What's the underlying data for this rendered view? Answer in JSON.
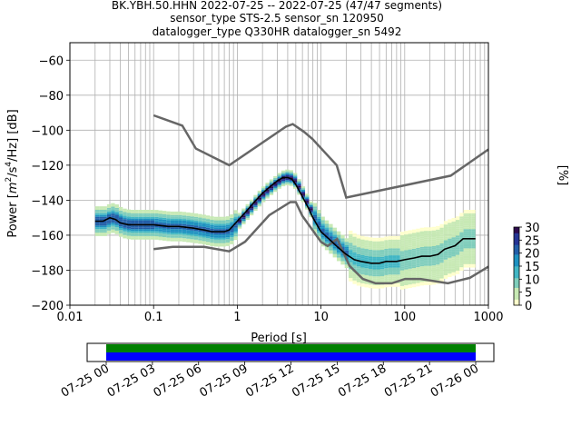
{
  "title_lines": [
    "BK.YBH.50.HHN   2022-07-25 -- 2022-07-25  (47/47 segments)",
    "sensor_type STS-2.5 sensor_sn 120950",
    "datalogger_type Q330HR datalogger_sn 5492"
  ],
  "chart_data": [
    {
      "type": "heatmap",
      "title": "BK.YBH.50.HHN   2022-07-25 -- 2022-07-25  (47/47 segments)",
      "xlabel": "Period [s]",
      "ylabel": "Power [m²/s⁴/Hz] [dB]",
      "ylabel_parts": {
        "prefix": "Power [",
        "m": "m",
        "exp1": "2",
        "mid": "/s",
        "exp2": "4",
        "suffix": "/Hz] [dB]"
      },
      "x_scale": "log",
      "xlim": [
        0.01,
        1000
      ],
      "ylim": [
        -200,
        -50
      ],
      "x_ticks": [
        0.01,
        0.1,
        1,
        10,
        100,
        1000
      ],
      "x_tick_labels": [
        "0.01",
        "0.1",
        "1",
        "10",
        "100",
        "1000"
      ],
      "y_ticks": [
        -200,
        -180,
        -160,
        -140,
        -120,
        -100,
        -80,
        -60
      ],
      "y_tick_labels": [
        "−200",
        "−180",
        "−160",
        "−140",
        "−120",
        "−100",
        "−80",
        "−60"
      ],
      "grid": true,
      "mode_curve": {
        "period": [
          0.02,
          0.025,
          0.03,
          0.035,
          0.04,
          0.05,
          0.07,
          0.1,
          0.15,
          0.2,
          0.3,
          0.4,
          0.5,
          0.6,
          0.7,
          0.8,
          1.0,
          1.3,
          1.6,
          2.0,
          2.5,
          3.0,
          3.5,
          4.0,
          4.5,
          5.0,
          6.0,
          7.0,
          8.0,
          10,
          13,
          16,
          20,
          25,
          30,
          40,
          50,
          60,
          80,
          100,
          130,
          160,
          200,
          250,
          300,
          400,
          500,
          600,
          700
        ],
        "power": [
          -152,
          -152,
          -150,
          -151,
          -153,
          -154,
          -154,
          -154,
          -155,
          -155,
          -156,
          -157,
          -158,
          -158,
          -158,
          -157,
          -152,
          -146,
          -141,
          -136,
          -132,
          -129,
          -127,
          -127,
          -128,
          -131,
          -138,
          -144,
          -150,
          -158,
          -163,
          -167,
          -171,
          -174,
          -175,
          -176,
          -176,
          -175,
          -175,
          -174,
          -173,
          -172,
          -172,
          -171,
          -168,
          -166,
          -162,
          -162,
          -162
        ]
      },
      "density_color_range": [
        0,
        30
      ],
      "density_example_points": [
        {
          "period": 0.05,
          "power": -153,
          "percent": 25
        },
        {
          "period": 0.2,
          "power": -156,
          "percent": 18
        },
        {
          "period": 1.5,
          "power": -143,
          "percent": 28
        },
        {
          "period": 4.0,
          "power": -127,
          "percent": 30
        },
        {
          "period": 15,
          "power": -163,
          "percent": 22
        },
        {
          "period": 40,
          "power": -176,
          "percent": 12
        },
        {
          "period": 200,
          "power": -172,
          "percent": 8
        },
        {
          "period": 500,
          "power": -162,
          "percent": 6
        }
      ],
      "nhnm": {
        "period": [
          0.1,
          0.22,
          0.32,
          0.8,
          3.8,
          4.6,
          6.3,
          7.9,
          15.4,
          20,
          354.8,
          1000
        ],
        "power": [
          -91.5,
          -97.4,
          -110.5,
          -120,
          -98,
          -96.5,
          -101,
          -105,
          -120,
          -138.5,
          -126,
          -111
        ]
      },
      "nlnm": {
        "period": [
          0.1,
          0.17,
          0.4,
          0.8,
          1.24,
          2.4,
          4.3,
          5.0,
          6.0,
          10,
          12,
          15.6,
          21.9,
          31.6,
          45,
          70,
          101,
          154,
          328,
          600,
          1000
        ],
        "power": [
          -168,
          -166.7,
          -166.7,
          -169.2,
          -163.7,
          -148.6,
          -141.1,
          -141.1,
          -149,
          -163.8,
          -166.2,
          -162.1,
          -177.5,
          -185,
          -187.5,
          -187.5,
          -185,
          -185,
          -187.5,
          -184.4,
          -178
        ]
      }
    },
    {
      "type": "table",
      "title": "",
      "xlabel": "",
      "tick_labels": [
        "07-25 00",
        "07-25 03",
        "07-25 06",
        "07-25 09",
        "07-25 12",
        "07-25 15",
        "07-25 18",
        "07-25 21",
        "07-26 00"
      ],
      "data_coverage_hours": [
        0,
        24
      ],
      "gap_coverage_hours": [
        0,
        24
      ],
      "colors": {
        "coverage_top": "#008000",
        "coverage_bottom": "#0000ff"
      }
    }
  ],
  "colorbar": {
    "label": "[%]",
    "ticks": [
      0,
      5,
      10,
      15,
      20,
      25,
      30
    ],
    "tick_labels": [
      "0",
      "5",
      "10",
      "15",
      "20",
      "25",
      "30"
    ],
    "colors": [
      "#ffffcc",
      "#c7e9b4",
      "#7fcdbb",
      "#41b6c4",
      "#1d91c0",
      "#225ea8",
      "#253494",
      "#2d0b4e"
    ]
  },
  "colors": {
    "mode_curve": "#000000",
    "noise_models": "#666666",
    "grid": "#b0b0b0"
  }
}
